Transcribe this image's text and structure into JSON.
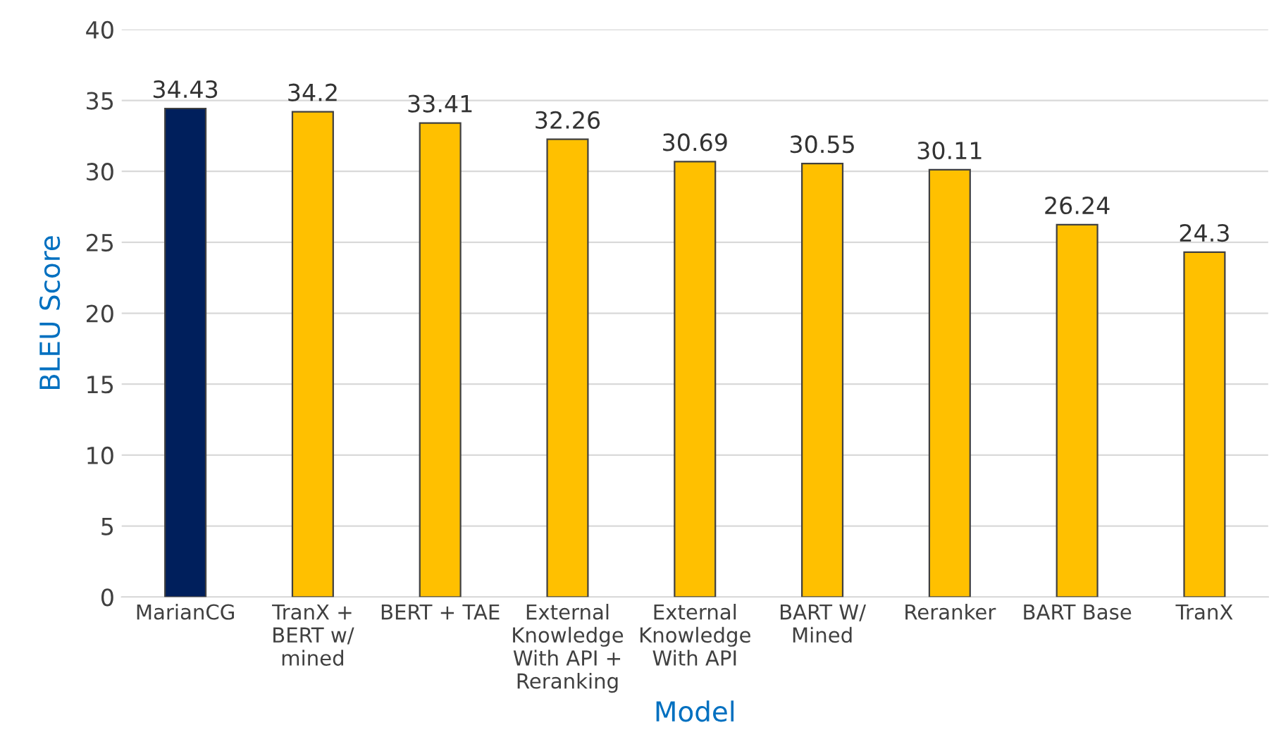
{
  "chart_data": {
    "type": "bar",
    "xlabel": "Model",
    "ylabel": "BLEU Score",
    "categories": [
      "MarianCG",
      "TranX +\nBERT w/\nmined",
      "BERT + TAE",
      "External\nKnowledge\nWith API +\nReranking",
      "External\nKnowledge\nWith API",
      "BART W/\nMined",
      "Reranker",
      "BART Base",
      "TranX"
    ],
    "values": [
      34.43,
      34.2,
      33.41,
      32.26,
      30.69,
      30.55,
      30.11,
      26.24,
      24.3
    ],
    "colors": [
      "#001f5c",
      "#ffc000",
      "#ffc000",
      "#ffc000",
      "#ffc000",
      "#ffc000",
      "#ffc000",
      "#ffc000",
      "#ffc000"
    ],
    "ylim": [
      0,
      40
    ],
    "yticks": [
      0,
      5,
      10,
      15,
      20,
      25,
      30,
      35,
      40
    ],
    "grid": "y",
    "data_labels": true
  }
}
